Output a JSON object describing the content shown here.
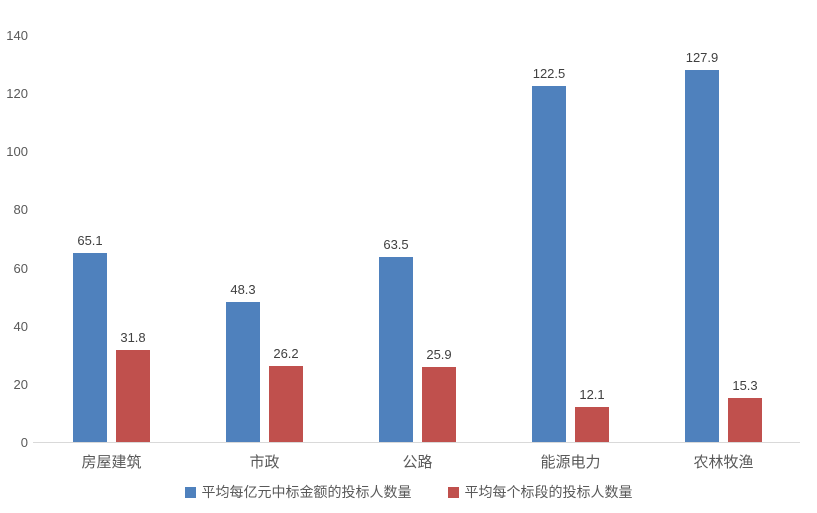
{
  "chart_data": {
    "type": "bar",
    "title": "",
    "xlabel": "",
    "ylabel": "",
    "categories": [
      "房屋建筑",
      "市政",
      "公路",
      "能源电力",
      "农林牧渔"
    ],
    "series": [
      {
        "name": "平均每亿元中标金额的投标人数量",
        "color": "#4F81BD",
        "values": [
          65.1,
          48.3,
          63.5,
          122.5,
          127.9
        ]
      },
      {
        "name": "平均每个标段的投标人数量",
        "color": "#C0504D",
        "values": [
          31.8,
          26.2,
          25.9,
          12.1,
          15.3
        ]
      }
    ],
    "ylim": [
      0,
      140
    ],
    "yticks": [
      0,
      20,
      40,
      60,
      80,
      100,
      120,
      140
    ],
    "grid": false,
    "legend_position": "bottom",
    "axis_line_color": "#D9D9D9",
    "tick_text_color": "#595959",
    "value_label_color": "#404040"
  }
}
